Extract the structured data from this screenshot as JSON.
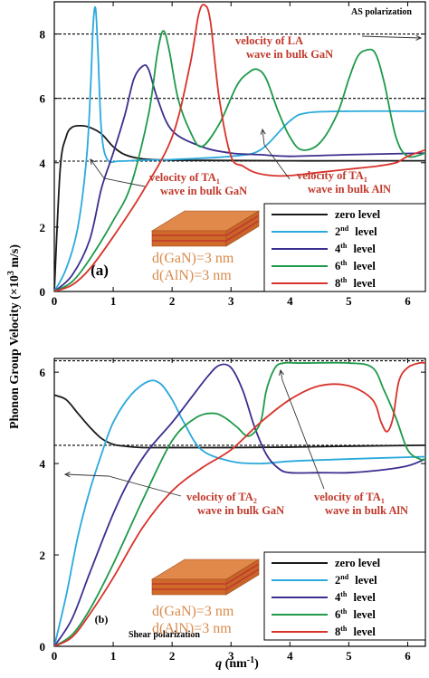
{
  "colors": {
    "zero": "#1a1a1a",
    "level2": "#2aa9dc",
    "level4": "#3b2f8f",
    "level6": "#1e9a4a",
    "level8": "#d8322a",
    "annotation": "#c0392b",
    "material_label": "#d88a4a",
    "slab_top": "#e0894a",
    "slab_side": "#d06a2a",
    "slab_stripe": "#c0392b"
  },
  "shared": {
    "ylabel_prefix": "Phonon Group Velocity (×10",
    "ylabel_exp": "3",
    "ylabel_suffix": " m/s)",
    "xlabel_q": "q",
    "xlabel_unit_prefix": " (nm",
    "xlabel_unit_exp": "-1",
    "xlabel_unit_suffix": ")"
  },
  "chart_data": [
    {
      "type": "line",
      "panel_label": "(a)",
      "polarization_label": "AS polarization",
      "xlim": [
        0,
        6.3
      ],
      "ylim": [
        0,
        9
      ],
      "x_ticks": [
        "0",
        "1",
        "2",
        "3",
        "4",
        "5",
        "6"
      ],
      "y_ticks": [
        "0",
        "2",
        "4",
        "6",
        "8"
      ],
      "y_tick_values": [
        0,
        2,
        4,
        6,
        8
      ],
      "reference_lines": [
        {
          "name": "LA bulk GaN",
          "y": 8.0
        },
        {
          "name": "TA bulk AlN",
          "y": 6.0
        },
        {
          "name": "TA bulk GaN",
          "y": 4.05
        }
      ],
      "annotations": [
        {
          "line1": "velocity of LA",
          "line2": "wave in bulk GaN"
        },
        {
          "line1": "velocity of TA",
          "sub": "1",
          "line2": "wave in bulk GaN"
        },
        {
          "line1": "velocity of TA",
          "sub": "1",
          "line2": "wave in bulk AlN"
        }
      ],
      "material_labels": [
        "d(GaN)=3 nm",
        "d(AlN)=3 nm"
      ],
      "legend": [
        {
          "label": "zero level",
          "sup": ""
        },
        {
          "label": "2",
          "sup": "nd",
          "suffix": " level"
        },
        {
          "label": "4",
          "sup": "th",
          "suffix": " level"
        },
        {
          "label": "6",
          "sup": "th",
          "suffix": " level"
        },
        {
          "label": "8",
          "sup": "th",
          "suffix": " level"
        }
      ],
      "series": [
        {
          "key": "zero",
          "x": [
            0,
            0.1,
            0.2,
            0.3,
            0.45,
            0.6,
            0.8,
            1.0,
            1.2,
            1.5,
            2.0,
            3.0,
            4.0,
            5.0,
            6.3
          ],
          "y": [
            0,
            3.8,
            4.8,
            5.1,
            5.15,
            5.1,
            4.9,
            4.5,
            4.25,
            4.12,
            4.08,
            4.07,
            4.06,
            4.06,
            4.06
          ]
        },
        {
          "key": "level2",
          "x": [
            0,
            0.2,
            0.4,
            0.55,
            0.62,
            0.66,
            0.7,
            0.74,
            0.8,
            0.9,
            1.1,
            1.5,
            2.0,
            3.0,
            3.5,
            4.0,
            4.3,
            5.0,
            6.3
          ],
          "y": [
            0,
            0.7,
            2.0,
            4.2,
            6.5,
            8.3,
            8.8,
            7.5,
            5.0,
            4.1,
            4.05,
            4.08,
            4.1,
            4.2,
            4.4,
            5.3,
            5.55,
            5.6,
            5.6
          ]
        },
        {
          "key": "level4",
          "x": [
            0,
            0.3,
            0.6,
            0.8,
            1.0,
            1.2,
            1.35,
            1.5,
            1.6,
            1.75,
            2.0,
            2.5,
            3.0,
            3.5,
            4.0,
            5.0,
            6.3
          ],
          "y": [
            0,
            0.5,
            1.6,
            3.2,
            4.3,
            5.5,
            6.6,
            7.0,
            6.9,
            6.0,
            5.0,
            4.5,
            4.3,
            4.25,
            4.2,
            4.25,
            4.3
          ]
        },
        {
          "key": "level6",
          "x": [
            0,
            0.3,
            0.6,
            1.0,
            1.3,
            1.6,
            1.75,
            1.85,
            1.95,
            2.1,
            2.3,
            2.5,
            2.8,
            3.1,
            3.3,
            3.45,
            3.6,
            3.8,
            4.0,
            4.2,
            4.5,
            4.8,
            5.0,
            5.15,
            5.3,
            5.45,
            5.6,
            5.8,
            6.0,
            6.3
          ],
          "y": [
            0,
            0.3,
            1.0,
            2.2,
            3.3,
            5.5,
            7.4,
            8.1,
            7.5,
            6.0,
            5.0,
            4.5,
            5.2,
            6.4,
            6.8,
            6.9,
            6.6,
            5.6,
            4.8,
            4.4,
            4.6,
            5.5,
            6.6,
            7.3,
            7.5,
            7.4,
            6.5,
            4.8,
            4.2,
            4.3
          ]
        },
        {
          "key": "level8",
          "x": [
            0,
            0.3,
            0.6,
            1.0,
            1.5,
            2.0,
            2.3,
            2.45,
            2.55,
            2.65,
            2.8,
            3.0,
            3.2,
            3.4,
            3.7,
            4.0,
            4.5,
            5.0,
            5.5,
            5.8,
            6.0,
            6.3
          ],
          "y": [
            0,
            0.2,
            0.7,
            1.7,
            3.1,
            4.8,
            7.0,
            8.6,
            8.9,
            8.4,
            6.0,
            4.2,
            3.9,
            3.7,
            3.6,
            3.6,
            3.7,
            3.8,
            3.9,
            4.0,
            4.2,
            4.4
          ]
        }
      ]
    },
    {
      "type": "line",
      "panel_label": "(b)",
      "polarization_label": "Shear polarization",
      "xlim": [
        0,
        6.3
      ],
      "ylim": [
        0,
        6.3
      ],
      "x_ticks": [
        "0",
        "1",
        "2",
        "3",
        "4",
        "5",
        "6"
      ],
      "y_ticks": [
        "0",
        "2",
        "4",
        "6"
      ],
      "y_tick_values": [
        0,
        2,
        4,
        6
      ],
      "reference_lines": [
        {
          "name": "TA bulk AlN",
          "y": 6.25
        },
        {
          "name": "TA bulk GaN",
          "y": 4.4
        }
      ],
      "annotations": [
        {
          "line1": "velocity of TA",
          "sub": "2",
          "line2": "wave in bulk GaN"
        },
        {
          "line1": "velocity of TA",
          "sub": "1",
          "line2": "wave in bulk AlN"
        }
      ],
      "material_labels": [
        "d(GaN)=3 nm",
        "d(AlN)=3 nm"
      ],
      "legend": [
        {
          "label": "zero level",
          "sup": ""
        },
        {
          "label": "2",
          "sup": "nd",
          "suffix": " level"
        },
        {
          "label": "4",
          "sup": "th",
          "suffix": " level"
        },
        {
          "label": "6",
          "sup": "th",
          "suffix": " level"
        },
        {
          "label": "8",
          "sup": "th",
          "suffix": " level"
        }
      ],
      "series": [
        {
          "key": "zero",
          "x": [
            0,
            0.2,
            0.4,
            0.6,
            0.8,
            1.0,
            1.2,
            1.5,
            2.0,
            3.0,
            4.0,
            5.0,
            6.3
          ],
          "y": [
            5.5,
            5.4,
            5.1,
            4.8,
            4.55,
            4.42,
            4.38,
            4.35,
            4.35,
            4.35,
            4.36,
            4.38,
            4.4
          ]
        },
        {
          "key": "level2",
          "x": [
            0,
            0.2,
            0.4,
            0.6,
            0.8,
            1.0,
            1.3,
            1.6,
            1.8,
            2.0,
            2.2,
            2.5,
            3.0,
            3.5,
            4.0,
            5.0,
            6.3
          ],
          "y": [
            0,
            1.1,
            2.4,
            3.4,
            4.2,
            4.9,
            5.5,
            5.8,
            5.75,
            5.4,
            4.9,
            4.3,
            4.05,
            4.0,
            4.05,
            4.1,
            4.15
          ]
        },
        {
          "key": "level4",
          "x": [
            0,
            0.3,
            0.6,
            1.0,
            1.3,
            1.6,
            2.0,
            2.3,
            2.6,
            2.8,
            3.0,
            3.2,
            3.4,
            3.6,
            3.8,
            4.0,
            4.5,
            5.0,
            5.5,
            6.0,
            6.3
          ],
          "y": [
            0,
            0.6,
            1.6,
            2.9,
            3.7,
            4.3,
            4.9,
            5.4,
            5.9,
            6.15,
            6.1,
            5.6,
            4.8,
            4.2,
            3.9,
            3.8,
            3.8,
            3.8,
            3.85,
            3.95,
            4.1
          ]
        },
        {
          "key": "level6",
          "x": [
            0,
            0.3,
            0.6,
            1.0,
            1.5,
            2.0,
            2.4,
            2.7,
            2.9,
            3.1,
            3.3,
            3.5,
            3.6,
            3.75,
            3.9,
            4.1,
            4.3,
            5.0,
            5.4,
            5.6,
            5.8,
            6.0,
            6.2,
            6.3
          ],
          "y": [
            0,
            0.25,
            0.8,
            1.8,
            3.2,
            4.5,
            5.0,
            5.1,
            5.0,
            4.8,
            4.6,
            4.9,
            5.6,
            6.1,
            6.2,
            6.2,
            6.2,
            6.2,
            6.1,
            5.6,
            5.0,
            4.3,
            4.1,
            4.1
          ]
        },
        {
          "key": "level8",
          "x": [
            0,
            0.3,
            0.6,
            1.0,
            1.5,
            2.0,
            2.5,
            3.0,
            3.5,
            4.0,
            4.5,
            5.0,
            5.4,
            5.55,
            5.65,
            5.75,
            5.85,
            6.0,
            6.2,
            6.3
          ],
          "y": [
            0,
            0.2,
            0.7,
            1.5,
            2.6,
            3.4,
            3.9,
            4.3,
            4.9,
            5.4,
            5.7,
            5.7,
            5.4,
            4.9,
            4.7,
            5.0,
            5.8,
            6.1,
            6.2,
            6.2
          ]
        }
      ]
    }
  ]
}
